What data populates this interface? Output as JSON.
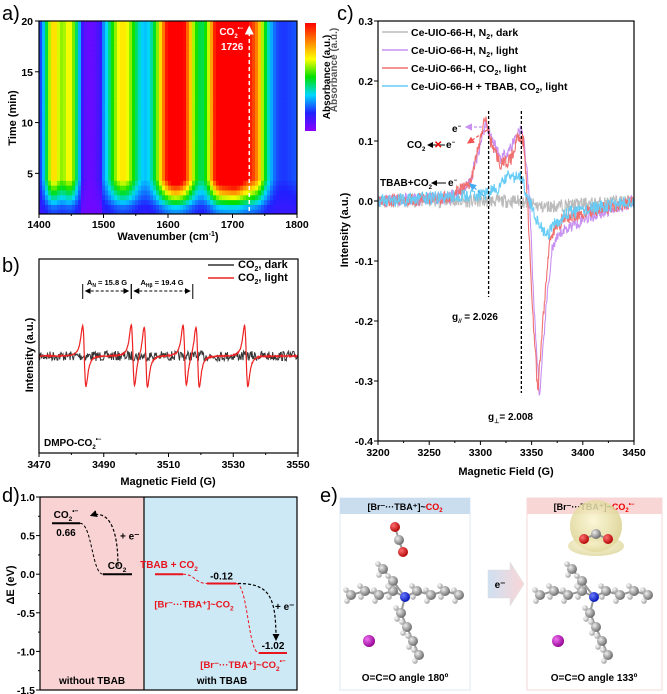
{
  "chart_data": [
    {
      "id": "a",
      "panel_label": "a)",
      "type": "heatmap",
      "xlabel": "Wavenumber (cm-1)",
      "xlabel_main": "Wavenumber (cm",
      "xlabel_sup": "-1",
      "xlabel_end": ")",
      "ylabel": "Time (min)",
      "xlim": [
        1400,
        1800
      ],
      "ylim": [
        1,
        20
      ],
      "xticks": [
        1400,
        1500,
        1600,
        1700,
        1800
      ],
      "yticks": [
        5,
        10,
        15,
        20
      ],
      "colorbar_label": "Absorbance (a.u.)",
      "colormap": [
        "#8b00ff",
        "#2020ff",
        "#00d8ff",
        "#00e000",
        "#ffff00",
        "#ff8000",
        "#ff0000"
      ],
      "bands": [
        {
          "center": 1422,
          "width": 10,
          "intensity": 0.55
        },
        {
          "center": 1448,
          "width": 10,
          "intensity": 0.5
        },
        {
          "center": 1530,
          "width": 18,
          "intensity": 0.55
        },
        {
          "center": 1612,
          "width": 22,
          "intensity": 1.0
        },
        {
          "center": 1680,
          "width": 14,
          "intensity": 0.88
        },
        {
          "center": 1705,
          "width": 12,
          "intensity": 0.72
        },
        {
          "center": 1732,
          "width": 16,
          "intensity": 0.7
        }
      ],
      "annotation": {
        "text": "CO2•−",
        "base": "CO",
        "sub": "2",
        "sup": "•−",
        "value": "1726",
        "x": 1726
      }
    },
    {
      "id": "b",
      "panel_label": "b)",
      "type": "line",
      "xlabel": "Magnetic Field (G)",
      "ylabel": "Intensity (a.u.)",
      "xlim": [
        3470,
        3550
      ],
      "xticks": [
        3470,
        3490,
        3510,
        3530,
        3550
      ],
      "series": [
        {
          "name": "CO2, dark",
          "name_base": "CO",
          "name_sub": "2",
          "name_rest": ", dark",
          "color": "#333333",
          "lines": []
        },
        {
          "name": "CO2, light",
          "name_base": "CO",
          "name_sub": "2",
          "name_rest": ", light",
          "color": "#ee2222",
          "lines": [
            {
              "x": 3484,
              "amp": 1.0
            },
            {
              "x": 3499,
              "amp": 1.0
            },
            {
              "x": 3503,
              "amp": 1.0
            },
            {
              "x": 3515,
              "amp": 1.0
            },
            {
              "x": 3519,
              "amp": 1.0
            },
            {
              "x": 3534,
              "amp": 1.0
            }
          ]
        }
      ],
      "annotations": [
        {
          "text_base": "A",
          "text_sub": "N",
          "text_rest": " = 15.8 G",
          "x1": 3483.5,
          "x2": 3498.5
        },
        {
          "text_base": "A",
          "text_sub": "Hβ",
          "text_rest": " = 19.4 G",
          "x1": 3498.5,
          "x2": 3517.5
        }
      ],
      "label": {
        "base": "DMPO-CO",
        "sub": "2",
        "sup": "•−"
      }
    },
    {
      "id": "c",
      "panel_label": "c)",
      "type": "line",
      "xlabel": "Magnetic Field (G)",
      "ylabel": "Intensity (a.u.)",
      "xlim": [
        3200,
        3450
      ],
      "ylim": [
        -0.4,
        0.3
      ],
      "xticks": [
        3200,
        3250,
        3300,
        3350,
        3400,
        3450
      ],
      "yticks": [
        -0.4,
        -0.3,
        -0.2,
        -0.1,
        0.0,
        0.1,
        0.2,
        0.3
      ],
      "background_text": "Absorbance (a.u.)",
      "series": [
        {
          "name": "Ce-UIO-66-H, N2, dark",
          "parts": [
            "Ce-UIO-66-H, N",
            "2",
            ", dark"
          ],
          "color": "#bbbbbb",
          "points": [
            [
              3200,
              0
            ],
            [
              3300,
              0
            ],
            [
              3340,
              0
            ],
            [
              3360,
              -0.01
            ],
            [
              3400,
              -0.005
            ],
            [
              3450,
              0
            ]
          ]
        },
        {
          "name": "Ce-UiO-66-H, N2, light",
          "parts": [
            "Ce-UiO-66-H, N",
            "2",
            ", light"
          ],
          "color": "#c890f0",
          "points": [
            [
              3200,
              0
            ],
            [
              3270,
              0.005
            ],
            [
              3290,
              0.03
            ],
            [
              3305,
              0.13
            ],
            [
              3310,
              0.11
            ],
            [
              3320,
              0.07
            ],
            [
              3330,
              0.09
            ],
            [
              3338,
              0.12
            ],
            [
              3342,
              0.11
            ],
            [
              3348,
              0.0
            ],
            [
              3353,
              -0.2
            ],
            [
              3358,
              -0.33
            ],
            [
              3363,
              -0.2
            ],
            [
              3370,
              -0.08
            ],
            [
              3380,
              -0.05
            ],
            [
              3400,
              -0.03
            ],
            [
              3450,
              0
            ]
          ]
        },
        {
          "name": "Ce-UiO-66-H, CO2, light",
          "parts": [
            "Ce-UiO-66-H, CO",
            "2",
            ", light"
          ],
          "color": "#f07070",
          "points": [
            [
              3200,
              0
            ],
            [
              3270,
              0.005
            ],
            [
              3290,
              0.03
            ],
            [
              3305,
              0.14
            ],
            [
              3310,
              0.1
            ],
            [
              3320,
              0.06
            ],
            [
              3330,
              0.07
            ],
            [
              3337,
              0.11
            ],
            [
              3342,
              0.1
            ],
            [
              3346,
              0.0
            ],
            [
              3350,
              -0.15
            ],
            [
              3356,
              -0.32
            ],
            [
              3361,
              -0.2
            ],
            [
              3368,
              -0.06
            ],
            [
              3380,
              -0.03
            ],
            [
              3400,
              -0.02
            ],
            [
              3450,
              0
            ]
          ]
        },
        {
          "name": "Ce-UiO-66-H + TBAB, CO2, light",
          "parts": [
            "Ce-UiO-66-H + TBAB, CO",
            "2",
            ", light"
          ],
          "color": "#66ccf5",
          "points": [
            [
              3200,
              0
            ],
            [
              3300,
              0.01
            ],
            [
              3318,
              0.02
            ],
            [
              3325,
              0.04
            ],
            [
              3340,
              0.04
            ],
            [
              3346,
              0.01
            ],
            [
              3355,
              -0.03
            ],
            [
              3365,
              -0.06
            ],
            [
              3372,
              -0.04
            ],
            [
              3385,
              -0.02
            ],
            [
              3450,
              0
            ]
          ]
        }
      ],
      "vlines": [
        3308,
        3340
      ],
      "annotations": [
        {
          "text": "g// = 2.026",
          "base": "g",
          "sub": "//",
          "rest": " = 2.026"
        },
        {
          "text": "g⊥ = 2.008",
          "base": "g",
          "sub": "⊥",
          "rest": "= 2.008"
        },
        {
          "text": "e−"
        },
        {
          "text": "CO2 ←✗ e−"
        },
        {
          "text": "TBAB+CO2 ← e−"
        }
      ]
    },
    {
      "id": "d",
      "panel_label": "d)",
      "type": "line",
      "ylabel": "ΔE (eV)",
      "ylim": [
        -1.5,
        1.0
      ],
      "yticks": [
        -1.5,
        -1.0,
        -0.5,
        0.0,
        0.5,
        1.0
      ],
      "regions": [
        {
          "label": "without TBAB",
          "color": "#f9d3d3"
        },
        {
          "label": "with TBAB",
          "color": "#cde9f6"
        }
      ],
      "levels": [
        {
          "region": 0,
          "energy": 0.66,
          "value_label": "0.66",
          "species": {
            "base": "CO",
            "sub": "2",
            "sup": "•−"
          },
          "color": "#000000"
        },
        {
          "region": 0,
          "energy": 0.0,
          "value_label": "",
          "species": {
            "base": "CO",
            "sub": "2",
            "sup": ""
          },
          "color": "#000000"
        },
        {
          "region": 1,
          "energy": 0.0,
          "value_label": "",
          "species": {
            "base": "TBAB + CO",
            "sub": "2",
            "sup": ""
          },
          "color": "#e8141e"
        },
        {
          "region": 1,
          "energy": -0.12,
          "value_label": "-0.12",
          "species": {
            "base": "[Br⁻···TBA⁺]~CO",
            "sub": "2",
            "sup": ""
          },
          "color": "#e8141e"
        },
        {
          "region": 1,
          "energy": -1.02,
          "value_label": "-1.02",
          "species": {
            "base": "[Br⁻···TBA⁺]~CO",
            "sub": "2",
            "sup": "•−"
          },
          "color": "#e8141e"
        }
      ],
      "electron_label": "+ e⁻"
    }
  ],
  "panel_e": {
    "panel_label": "e)",
    "left": {
      "title_black": "[Br⁻···TBA⁺]~",
      "title_red": "CO",
      "title_sub": "2",
      "title_sup": "",
      "caption": "O=C=O angle 180º",
      "header_color": "#c9ddef"
    },
    "right": {
      "title_black": "[Br⁻···TBA⁺]~",
      "title_red": "CO",
      "title_sub": "2",
      "title_sup": "•−",
      "caption": "O=C=O angle 133º",
      "header_color": "#f9d6d6"
    },
    "arrow_label": "e⁻"
  }
}
